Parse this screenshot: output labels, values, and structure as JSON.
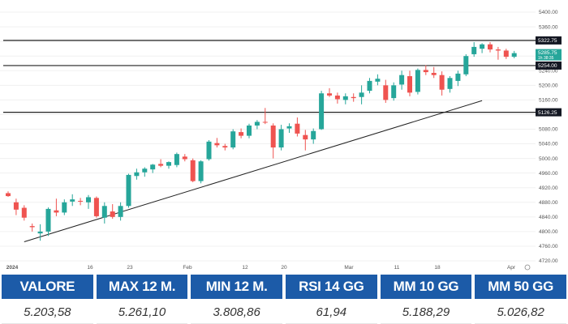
{
  "chart_data": {
    "type": "candlestick",
    "y_ticks": [
      "5400.00",
      "5360.00",
      "5320.00",
      "5280.00",
      "5240.00",
      "5200.00",
      "5160.00",
      "5120.00",
      "5080.00",
      "5040.00",
      "5000.00",
      "4960.00",
      "4920.00",
      "4880.00",
      "4840.00",
      "4800.00",
      "4760.00",
      "4720.00"
    ],
    "x_ticks": [
      "2024",
      "16",
      "23",
      "Feb",
      "12",
      "20",
      "Mar",
      "11",
      "18",
      "Apr"
    ],
    "ylim": [
      4720,
      5420
    ],
    "horizontal_levels": [
      {
        "value": 5322.75,
        "label": "5322.75"
      },
      {
        "value": 5254.0,
        "label": "5254.00"
      },
      {
        "value": 5126.25,
        "label": "5126.25"
      }
    ],
    "last_price": {
      "value": 5285.75,
      "label": "5285.75",
      "sub_label": "1h 38:35"
    },
    "trendline": {
      "from": {
        "index": 2,
        "value": 4772
      },
      "to": {
        "index": 59,
        "value": 5158
      }
    },
    "colors": {
      "up": "#26a69a",
      "down": "#ef5350",
      "level": "#222222",
      "badge": "#131722",
      "price_badge": "#26a69a",
      "trend": "#222222"
    },
    "candles": [
      {
        "o": 4905,
        "h": 4910,
        "l": 4895,
        "c": 4897
      },
      {
        "o": 4880,
        "h": 4890,
        "l": 4845,
        "c": 4860
      },
      {
        "o": 4865,
        "h": 4872,
        "l": 4830,
        "c": 4838
      },
      {
        "o": 4815,
        "h": 4822,
        "l": 4800,
        "c": 4812
      },
      {
        "o": 4795,
        "h": 4820,
        "l": 4775,
        "c": 4800
      },
      {
        "o": 4800,
        "h": 4866,
        "l": 4788,
        "c": 4862
      },
      {
        "o": 4858,
        "h": 4890,
        "l": 4842,
        "c": 4852
      },
      {
        "o": 4852,
        "h": 4888,
        "l": 4845,
        "c": 4880
      },
      {
        "o": 4882,
        "h": 4902,
        "l": 4870,
        "c": 4888
      },
      {
        "o": 4884,
        "h": 4892,
        "l": 4872,
        "c": 4882
      },
      {
        "o": 4880,
        "h": 4900,
        "l": 4862,
        "c": 4894
      },
      {
        "o": 4892,
        "h": 4896,
        "l": 4838,
        "c": 4842
      },
      {
        "o": 4838,
        "h": 4880,
        "l": 4822,
        "c": 4870
      },
      {
        "o": 4855,
        "h": 4875,
        "l": 4835,
        "c": 4840
      },
      {
        "o": 4840,
        "h": 4880,
        "l": 4830,
        "c": 4870
      },
      {
        "o": 4870,
        "h": 4958,
        "l": 4865,
        "c": 4955
      },
      {
        "o": 4952,
        "h": 4972,
        "l": 4942,
        "c": 4962
      },
      {
        "o": 4962,
        "h": 4976,
        "l": 4950,
        "c": 4972
      },
      {
        "o": 4970,
        "h": 4985,
        "l": 4960,
        "c": 4983
      },
      {
        "o": 4985,
        "h": 4998,
        "l": 4976,
        "c": 4980
      },
      {
        "o": 4980,
        "h": 4992,
        "l": 4972,
        "c": 4990
      },
      {
        "o": 4982,
        "h": 5016,
        "l": 4976,
        "c": 5012
      },
      {
        "o": 5005,
        "h": 5012,
        "l": 4992,
        "c": 4998
      },
      {
        "o": 4995,
        "h": 5000,
        "l": 4935,
        "c": 4938
      },
      {
        "o": 4938,
        "h": 4995,
        "l": 4932,
        "c": 4992
      },
      {
        "o": 4998,
        "h": 5050,
        "l": 4994,
        "c": 5046
      },
      {
        "o": 5042,
        "h": 5056,
        "l": 5030,
        "c": 5036
      },
      {
        "o": 5034,
        "h": 5040,
        "l": 5022,
        "c": 5030
      },
      {
        "o": 5030,
        "h": 5080,
        "l": 5025,
        "c": 5074
      },
      {
        "o": 5072,
        "h": 5082,
        "l": 5055,
        "c": 5062
      },
      {
        "o": 5062,
        "h": 5095,
        "l": 5055,
        "c": 5090
      },
      {
        "o": 5090,
        "h": 5105,
        "l": 5080,
        "c": 5100
      },
      {
        "o": 5100,
        "h": 5138,
        "l": 5094,
        "c": 5098
      },
      {
        "o": 5090,
        "h": 5096,
        "l": 5000,
        "c": 5030
      },
      {
        "o": 5030,
        "h": 5092,
        "l": 5022,
        "c": 5080
      },
      {
        "o": 5082,
        "h": 5096,
        "l": 5070,
        "c": 5088
      },
      {
        "o": 5095,
        "h": 5112,
        "l": 5060,
        "c": 5068
      },
      {
        "o": 5064,
        "h": 5078,
        "l": 5022,
        "c": 5052
      },
      {
        "o": 5052,
        "h": 5082,
        "l": 5040,
        "c": 5075
      },
      {
        "o": 5080,
        "h": 5185,
        "l": 5078,
        "c": 5178
      },
      {
        "o": 5178,
        "h": 5192,
        "l": 5168,
        "c": 5172
      },
      {
        "o": 5172,
        "h": 5180,
        "l": 5150,
        "c": 5162
      },
      {
        "o": 5160,
        "h": 5178,
        "l": 5148,
        "c": 5170
      },
      {
        "o": 5168,
        "h": 5178,
        "l": 5155,
        "c": 5165
      },
      {
        "o": 5168,
        "h": 5200,
        "l": 5148,
        "c": 5180
      },
      {
        "o": 5185,
        "h": 5220,
        "l": 5178,
        "c": 5212
      },
      {
        "o": 5210,
        "h": 5230,
        "l": 5200,
        "c": 5218
      },
      {
        "o": 5200,
        "h": 5215,
        "l": 5152,
        "c": 5160
      },
      {
        "o": 5165,
        "h": 5208,
        "l": 5158,
        "c": 5200
      },
      {
        "o": 5202,
        "h": 5240,
        "l": 5188,
        "c": 5228
      },
      {
        "o": 5225,
        "h": 5240,
        "l": 5170,
        "c": 5180
      },
      {
        "o": 5182,
        "h": 5246,
        "l": 5175,
        "c": 5242
      },
      {
        "o": 5242,
        "h": 5255,
        "l": 5228,
        "c": 5236
      },
      {
        "o": 5234,
        "h": 5250,
        "l": 5220,
        "c": 5228
      },
      {
        "o": 5228,
        "h": 5238,
        "l": 5172,
        "c": 5188
      },
      {
        "o": 5190,
        "h": 5225,
        "l": 5180,
        "c": 5220
      },
      {
        "o": 5212,
        "h": 5240,
        "l": 5198,
        "c": 5232
      },
      {
        "o": 5230,
        "h": 5285,
        "l": 5225,
        "c": 5280
      },
      {
        "o": 5285,
        "h": 5318,
        "l": 5278,
        "c": 5305
      },
      {
        "o": 5300,
        "h": 5315,
        "l": 5288,
        "c": 5312
      },
      {
        "o": 5312,
        "h": 5318,
        "l": 5290,
        "c": 5298
      },
      {
        "o": 5298,
        "h": 5305,
        "l": 5270,
        "c": 5295
      },
      {
        "o": 5295,
        "h": 5300,
        "l": 5272,
        "c": 5278
      },
      {
        "o": 5278,
        "h": 5294,
        "l": 5274,
        "c": 5288
      }
    ]
  },
  "stats": [
    {
      "label": "VALORE",
      "value": "5.203,58"
    },
    {
      "label": "MAX 12 M.",
      "value": "5.261,10"
    },
    {
      "label": "MIN 12 M.",
      "value": "3.808,86"
    },
    {
      "label": "RSI 14 GG",
      "value": "61,94"
    },
    {
      "label": "MM 10 GG",
      "value": "5.188,29"
    },
    {
      "label": "MM 50 GG",
      "value": "5.026,82"
    }
  ]
}
